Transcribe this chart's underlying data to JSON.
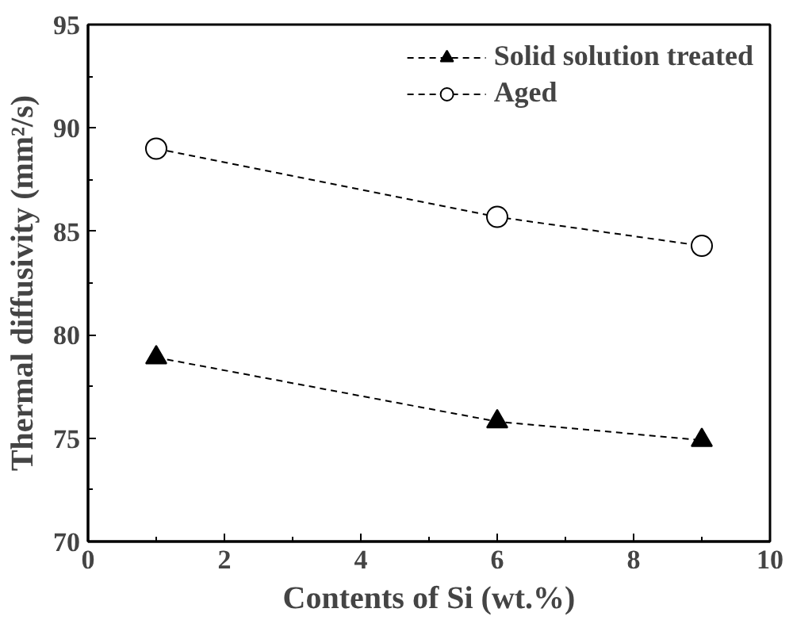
{
  "chart_data": {
    "type": "line",
    "xlabel": "Contents of Si (wt.%)",
    "ylabel": "Thermal diffusivity (mm²/s)",
    "x": [
      1,
      6,
      9
    ],
    "series": [
      {
        "name": "Solid solution treated",
        "color": "#000000",
        "marker": "triangle",
        "values": [
          78.9,
          75.8,
          74.9
        ]
      },
      {
        "name": "Aged",
        "color": "#000000",
        "marker": "circle",
        "values": [
          89.0,
          85.7,
          84.3
        ]
      }
    ],
    "xlim": [
      0,
      10
    ],
    "xticks": [
      0,
      2,
      4,
      6,
      8,
      10
    ],
    "ylim": [
      70,
      95
    ],
    "yticks": [
      70,
      75,
      80,
      85,
      90,
      95
    ],
    "grid": false,
    "legend": "top right",
    "line_style": "dashed"
  }
}
